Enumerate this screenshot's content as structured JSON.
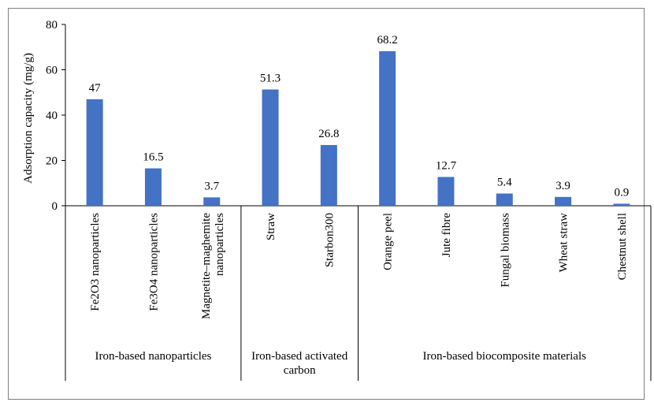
{
  "chart_data": {
    "type": "bar",
    "title": "",
    "xlabel": "",
    "ylabel": "Adsorption capacity (mg/g)",
    "ylim": [
      0,
      80
    ],
    "yticks": [
      0,
      20,
      40,
      60,
      80
    ],
    "grid": false,
    "bar_color": "#4472C4",
    "categories": [
      "Fe2O3 nanoparticles",
      "Fe3O4 nanoparticles",
      "Magnetite–maghemite nanoparticles",
      "Straw",
      "Starbon300",
      "Orange peel",
      "Jute fibre",
      "Fungal biomass",
      "Wheat straw",
      "Chestnut shell"
    ],
    "values": [
      47,
      16.5,
      3.7,
      51.3,
      26.8,
      68.2,
      12.7,
      5.4,
      3.9,
      0.9
    ],
    "data_labels": [
      "47",
      "16.5",
      "3.7",
      "51.3",
      "26.8",
      "68.2",
      "12.7",
      "5.4",
      "3.9",
      "0.9"
    ],
    "groups": [
      {
        "label": "Iron-based nanoparticles",
        "count": 3
      },
      {
        "label": "Iron-based activated carbon",
        "count": 2
      },
      {
        "label": "Iron-based biocomposite materials",
        "count": 5
      }
    ]
  }
}
